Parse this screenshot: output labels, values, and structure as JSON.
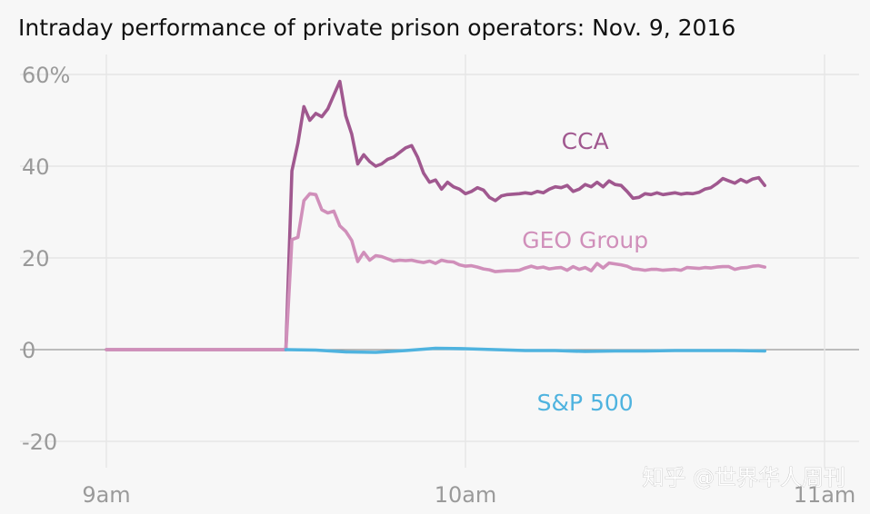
{
  "chart_data": {
    "type": "line",
    "title": "Intraday performance of private prison operators: Nov. 9, 2016",
    "xlabel": "",
    "ylabel": "",
    "x_range": [
      "9:00",
      "11:00"
    ],
    "ylim": [
      -25,
      62
    ],
    "grid": true,
    "legend": "inline labels",
    "x_ticks": [
      {
        "label": "9am",
        "value": "9:00"
      },
      {
        "label": "10am",
        "value": "10:00"
      },
      {
        "label": "11am",
        "value": "11:00"
      }
    ],
    "y_ticks": [
      {
        "label": "60%",
        "value": 60
      },
      {
        "label": "40",
        "value": 40
      },
      {
        "label": "20",
        "value": 20
      },
      {
        "label": "0",
        "value": 0
      },
      {
        "label": "-20",
        "value": -20
      }
    ],
    "series": [
      {
        "name": "CCA",
        "color": "#a0588f",
        "points": [
          [
            "9:00",
            0
          ],
          [
            "9:30",
            0
          ],
          [
            "9:31",
            39
          ],
          [
            "9:32",
            45
          ],
          [
            "9:33",
            53
          ],
          [
            "9:34",
            50
          ],
          [
            "9:35",
            51.5
          ],
          [
            "9:36",
            50.8
          ],
          [
            "9:37",
            52.5
          ],
          [
            "9:38",
            55.5
          ],
          [
            "9:39",
            58.5
          ],
          [
            "9:40",
            51
          ],
          [
            "9:41",
            47
          ],
          [
            "9:42",
            40.5
          ],
          [
            "9:43",
            42.5
          ],
          [
            "9:44",
            41
          ],
          [
            "9:45",
            40
          ],
          [
            "9:46",
            40.5
          ],
          [
            "9:47",
            41.5
          ],
          [
            "9:48",
            42
          ],
          [
            "9:49",
            43
          ],
          [
            "9:50",
            44
          ],
          [
            "9:51",
            44.5
          ],
          [
            "9:52",
            42
          ],
          [
            "9:53",
            38.5
          ],
          [
            "9:54",
            36.5
          ],
          [
            "9:55",
            37
          ],
          [
            "9:56",
            35
          ],
          [
            "9:57",
            36.5
          ],
          [
            "9:58",
            35.5
          ],
          [
            "9:59",
            35
          ],
          [
            "10:00",
            34
          ],
          [
            "10:01",
            34.5
          ],
          [
            "10:02",
            35.3
          ],
          [
            "10:03",
            34.8
          ],
          [
            "10:04",
            33.2
          ],
          [
            "10:05",
            32.5
          ],
          [
            "10:06",
            33.5
          ],
          [
            "10:07",
            33.8
          ],
          [
            "10:08",
            33.9
          ],
          [
            "10:09",
            34
          ],
          [
            "10:10",
            34.2
          ],
          [
            "10:11",
            34
          ],
          [
            "10:12",
            34.5
          ],
          [
            "10:13",
            34.2
          ],
          [
            "10:14",
            35
          ],
          [
            "10:15",
            35.5
          ],
          [
            "10:16",
            35.3
          ],
          [
            "10:17",
            35.8
          ],
          [
            "10:18",
            34.5
          ],
          [
            "10:19",
            35
          ],
          [
            "10:20",
            36
          ],
          [
            "10:21",
            35.5
          ],
          [
            "10:22",
            36.5
          ],
          [
            "10:23",
            35.5
          ],
          [
            "10:24",
            36.8
          ],
          [
            "10:25",
            36
          ],
          [
            "10:26",
            35.8
          ],
          [
            "10:27",
            34.5
          ],
          [
            "10:28",
            33
          ],
          [
            "10:29",
            33.2
          ],
          [
            "10:30",
            34
          ],
          [
            "10:31",
            33.8
          ],
          [
            "10:32",
            34.2
          ],
          [
            "10:33",
            33.8
          ],
          [
            "10:34",
            34
          ],
          [
            "10:35",
            34.2
          ],
          [
            "10:36",
            33.9
          ],
          [
            "10:37",
            34.1
          ],
          [
            "10:38",
            34
          ],
          [
            "10:39",
            34.3
          ],
          [
            "10:40",
            35
          ],
          [
            "10:41",
            35.3
          ],
          [
            "10:42",
            36.2
          ],
          [
            "10:43",
            37.3
          ],
          [
            "10:44",
            36.8
          ],
          [
            "10:45",
            36.3
          ],
          [
            "10:46",
            37.1
          ],
          [
            "10:47",
            36.5
          ],
          [
            "10:48",
            37.2
          ],
          [
            "10:49",
            37.5
          ],
          [
            "10:50",
            35.8
          ]
        ]
      },
      {
        "name": "GEO Group",
        "color": "#d08fba",
        "points": [
          [
            "9:00",
            0
          ],
          [
            "9:30",
            0
          ],
          [
            "9:31",
            24
          ],
          [
            "9:32",
            24.5
          ],
          [
            "9:33",
            32.5
          ],
          [
            "9:34",
            34
          ],
          [
            "9:35",
            33.8
          ],
          [
            "9:36",
            30.5
          ],
          [
            "9:37",
            29.8
          ],
          [
            "9:38",
            30.2
          ],
          [
            "9:39",
            27
          ],
          [
            "9:40",
            25.8
          ],
          [
            "9:41",
            23.8
          ],
          [
            "9:42",
            19.2
          ],
          [
            "9:43",
            21.2
          ],
          [
            "9:44",
            19.5
          ],
          [
            "9:45",
            20.5
          ],
          [
            "9:46",
            20.3
          ],
          [
            "9:47",
            19.8
          ],
          [
            "9:48",
            19.3
          ],
          [
            "9:49",
            19.5
          ],
          [
            "9:50",
            19.4
          ],
          [
            "9:51",
            19.5
          ],
          [
            "9:52",
            19.2
          ],
          [
            "9:53",
            19
          ],
          [
            "9:54",
            19.3
          ],
          [
            "9:55",
            18.8
          ],
          [
            "9:56",
            19.5
          ],
          [
            "9:57",
            19.2
          ],
          [
            "9:58",
            19.1
          ],
          [
            "9:59",
            18.5
          ],
          [
            "10:00",
            18.2
          ],
          [
            "10:01",
            18.3
          ],
          [
            "10:02",
            18
          ],
          [
            "10:03",
            17.6
          ],
          [
            "10:04",
            17.4
          ],
          [
            "10:05",
            17
          ],
          [
            "10:06",
            17.1
          ],
          [
            "10:07",
            17.2
          ],
          [
            "10:08",
            17.2
          ],
          [
            "10:09",
            17.3
          ],
          [
            "10:10",
            17.8
          ],
          [
            "10:11",
            18.2
          ],
          [
            "10:12",
            17.8
          ],
          [
            "10:13",
            18
          ],
          [
            "10:14",
            17.6
          ],
          [
            "10:15",
            17.8
          ],
          [
            "10:16",
            17.9
          ],
          [
            "10:17",
            17.3
          ],
          [
            "10:18",
            18.1
          ],
          [
            "10:19",
            17.5
          ],
          [
            "10:20",
            17.9
          ],
          [
            "10:21",
            17.2
          ],
          [
            "10:22",
            18.8
          ],
          [
            "10:23",
            17.8
          ],
          [
            "10:24",
            18.9
          ],
          [
            "10:25",
            18.7
          ],
          [
            "10:26",
            18.5
          ],
          [
            "10:27",
            18.2
          ],
          [
            "10:28",
            17.6
          ],
          [
            "10:29",
            17.5
          ],
          [
            "10:30",
            17.3
          ],
          [
            "10:31",
            17.5
          ],
          [
            "10:32",
            17.5
          ],
          [
            "10:33",
            17.3
          ],
          [
            "10:34",
            17.4
          ],
          [
            "10:35",
            17.5
          ],
          [
            "10:36",
            17.3
          ],
          [
            "10:37",
            17.9
          ],
          [
            "10:38",
            17.8
          ],
          [
            "10:39",
            17.7
          ],
          [
            "10:40",
            17.9
          ],
          [
            "10:41",
            17.8
          ],
          [
            "10:42",
            18
          ],
          [
            "10:43",
            18.1
          ],
          [
            "10:44",
            18.1
          ],
          [
            "10:45",
            17.5
          ],
          [
            "10:46",
            17.8
          ],
          [
            "10:47",
            17.9
          ],
          [
            "10:48",
            18.2
          ],
          [
            "10:49",
            18.3
          ],
          [
            "10:50",
            18
          ]
        ]
      },
      {
        "name": "S&P 500",
        "color": "#4fb3df",
        "points": [
          [
            "9:30",
            0
          ],
          [
            "9:35",
            -0.1
          ],
          [
            "9:40",
            -0.5
          ],
          [
            "9:45",
            -0.6
          ],
          [
            "9:50",
            -0.2
          ],
          [
            "9:55",
            0.3
          ],
          [
            "10:00",
            0.2
          ],
          [
            "10:05",
            0
          ],
          [
            "10:10",
            -0.2
          ],
          [
            "10:15",
            -0.2
          ],
          [
            "10:20",
            -0.4
          ],
          [
            "10:25",
            -0.3
          ],
          [
            "10:30",
            -0.3
          ],
          [
            "10:35",
            -0.2
          ],
          [
            "10:40",
            -0.2
          ],
          [
            "10:45",
            -0.2
          ],
          [
            "10:50",
            -0.3
          ]
        ]
      }
    ],
    "annotations": [
      {
        "text": "CCA",
        "series": "CCA",
        "color": "#a0588f",
        "at": [
          "10:20",
          45.5
        ]
      },
      {
        "text": "GEO Group",
        "series": "GEO Group",
        "color": "#d08fba",
        "at": [
          "10:20",
          24
        ]
      },
      {
        "text": "S&P 500",
        "series": "S&P 500",
        "color": "#4fb3df",
        "at": [
          "10:20",
          -11.5
        ]
      }
    ]
  },
  "watermark": "知乎 @世界华人周刊"
}
